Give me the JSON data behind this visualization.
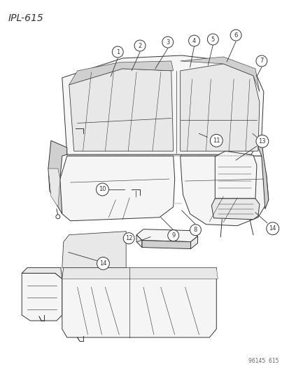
{
  "title": "IPL–615",
  "footer": "96145  615",
  "bg": "#ffffff",
  "lc": "#333333",
  "fc_light": "#f5f5f5",
  "fc_mid": "#e8e8e8",
  "fc_dark": "#d0d0d0",
  "figsize": [
    4.14,
    5.33
  ],
  "dpi": 100
}
